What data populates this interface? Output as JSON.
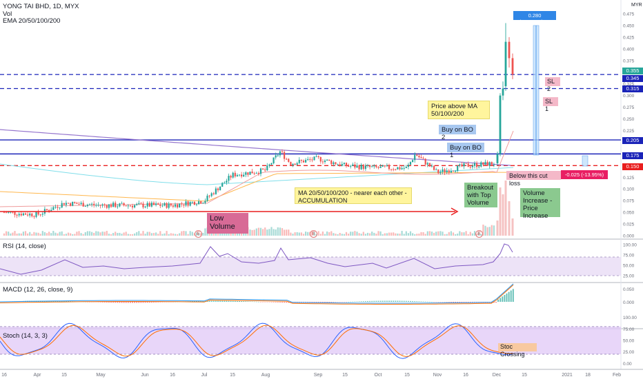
{
  "header": {
    "symbol": "YONG TAI BHD, 1D, MYX",
    "vol": "Vol",
    "ema": "EMA 20/50/100/200",
    "currency": "MYR"
  },
  "panes": {
    "rsi_label": "RSI (14, close)",
    "macd_label": "MACD (12, 26, close, 9)",
    "stoch_label": "Stoch (14, 3, 3)"
  },
  "price_axis_ticks": [
    "0.475",
    "0.450",
    "0.425",
    "0.400",
    "0.375",
    "0.350",
    "0.325",
    "0.300",
    "0.275",
    "0.250",
    "0.225",
    "0.200",
    "0.175",
    "0.150",
    "0.125",
    "0.100",
    "0.075",
    "0.050",
    "0.025",
    "0.000"
  ],
  "rsi_ticks": [
    "100.00",
    "75.00",
    "50.00",
    "25.00"
  ],
  "macd_ticks": [
    "0.050",
    "0.000"
  ],
  "stoch_ticks": [
    "100.00",
    "75.00",
    "50.00",
    "25.00",
    "0.00"
  ],
  "time_axis": [
    "16",
    "Apr",
    "15",
    "May",
    "Jun",
    "16",
    "Jul",
    "15",
    "Aug",
    "Sep",
    "15",
    "Oct",
    "15",
    "Nov",
    "16",
    "Dec",
    "15",
    "2021",
    "18",
    "Feb"
  ],
  "price_tags": {
    "current": "0.355",
    "p345": "0.345",
    "p315": "0.315",
    "p205": "0.205",
    "p175": "0.175",
    "p150": "0.150"
  },
  "measure_up": "0.280 (159.35%) 56",
  "measure_down": "-0.025 (-13.95%) -5",
  "annotations": {
    "sl2": "SL 2",
    "sl1": "SL 1",
    "price_above": "Price above MA 50/100/200",
    "buy_bo2": "Buy on BO 2",
    "buy_bo1": "Buy on BO 1",
    "cut_loss": "Below this cut loss",
    "breakout": "Breakout with Top Volume",
    "vol_increase": "Volume Increase - Price Increase",
    "accumulation": "MA 20/50/100/200 - nearer each other - ACCUMULATION",
    "low_volume": "Low Volume",
    "stoc_crossing": "Stoc Crossing",
    "earnings": "E"
  },
  "colors": {
    "up": "#26a69a",
    "down": "#ef5350",
    "blue_line": "#1a23b8",
    "red_line": "#e91e1e",
    "rsi_band": "#e8dcf5",
    "stoch_band": "#e0c8f7"
  },
  "chart_data": {
    "type": "candlestick",
    "title": "YONG TAI BHD, 1D, MYX",
    "key_levels": [
      {
        "name": "SL 2",
        "value": 0.345
      },
      {
        "name": "SL 1",
        "value": 0.315
      },
      {
        "name": "Buy on BO 2",
        "value": 0.205
      },
      {
        "name": "Buy on BO 1",
        "value": 0.175
      },
      {
        "name": "Below this cut loss",
        "value": 0.15
      }
    ],
    "close_path": [
      {
        "x": "Mar 16",
        "y": 0.05
      },
      {
        "x": "Apr 1",
        "y": 0.045
      },
      {
        "x": "Apr 15",
        "y": 0.07
      },
      {
        "x": "May 1",
        "y": 0.065
      },
      {
        "x": "Jun 1",
        "y": 0.065
      },
      {
        "x": "Jun 16",
        "y": 0.065
      },
      {
        "x": "Jul 1",
        "y": 0.075
      },
      {
        "x": "Jul 15",
        "y": 0.13
      },
      {
        "x": "Aug 1",
        "y": 0.14
      },
      {
        "x": "Aug 8",
        "y": 0.18
      },
      {
        "x": "Aug 15",
        "y": 0.155
      },
      {
        "x": "Sep 1",
        "y": 0.165
      },
      {
        "x": "Sep 15",
        "y": 0.15
      },
      {
        "x": "Oct 1",
        "y": 0.145
      },
      {
        "x": "Oct 15",
        "y": 0.145
      },
      {
        "x": "Oct 22",
        "y": 0.175
      },
      {
        "x": "Nov 1",
        "y": 0.135
      },
      {
        "x": "Nov 16",
        "y": 0.15
      },
      {
        "x": "Dec 1",
        "y": 0.155
      },
      {
        "x": "Dec 3",
        "y": 0.175
      },
      {
        "x": "Dec 4",
        "y": 0.3
      },
      {
        "x": "Dec 7",
        "y": 0.415
      },
      {
        "x": "Dec 8",
        "y": 0.38
      },
      {
        "x": "Dec 9",
        "y": 0.345
      }
    ],
    "ylim": [
      0,
      0.475
    ],
    "measure_up": {
      "change": 0.28,
      "percent": 159.35,
      "bars": 56
    },
    "measure_down": {
      "change": -0.025,
      "percent": -13.95,
      "bars": -5
    },
    "rsi_last": 80,
    "stoch_bands": [
      20,
      80
    ],
    "rsi_bands": [
      30,
      70
    ]
  }
}
